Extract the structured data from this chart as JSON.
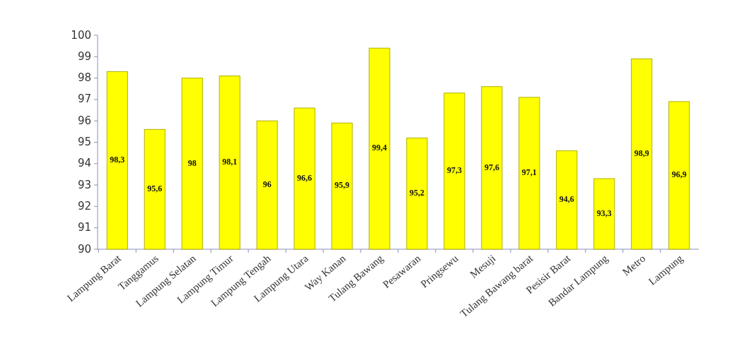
{
  "chart_data": {
    "type": "bar",
    "categories": [
      "Lampung Barat",
      "Tanggamus",
      "Lampung Selatan",
      "Lampung Timur",
      "Lampung Tengah",
      "Lampung Utara",
      "Way Kanan",
      "Tulang Bawang",
      "Pesawaran",
      "Pringsewu",
      "Mesuji",
      "Tulang Bawang barat",
      "Pesisir Barat",
      "Bandar Lampung",
      "Metro",
      "Lampung"
    ],
    "values": [
      98.3,
      95.6,
      98,
      98.1,
      96,
      96.6,
      95.9,
      99.4,
      95.2,
      97.3,
      97.6,
      97.1,
      94.6,
      93.3,
      98.9,
      96.9
    ],
    "value_labels": [
      "98,3",
      "95,6",
      "98",
      "98,1",
      "96",
      "96,6",
      "95,9",
      "99,4",
      "95,2",
      "97,3",
      "97,6",
      "97,1",
      "94,6",
      "93,3",
      "98,9",
      "96,9"
    ],
    "color": "#ffff00",
    "ylim": [
      90,
      100
    ],
    "yticks": [
      90,
      91,
      92,
      93,
      94,
      95,
      96,
      97,
      98,
      99,
      100
    ],
    "grid": false
  }
}
